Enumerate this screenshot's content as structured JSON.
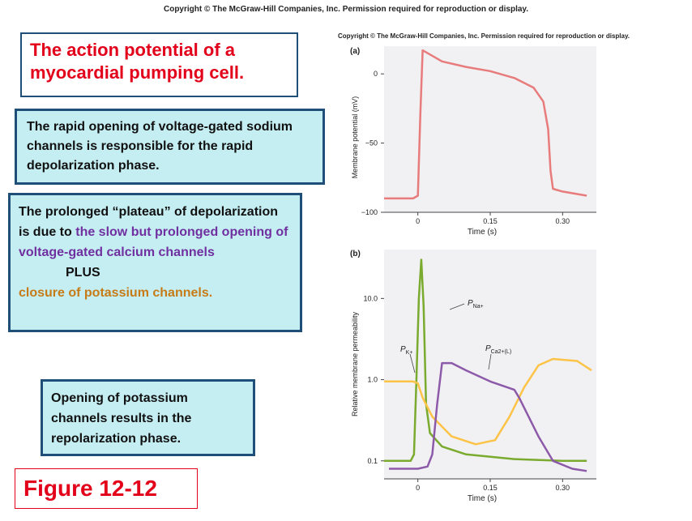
{
  "copyright_top": "Copyright © The McGraw-Hill Companies, Inc. Permission required for reproduction or display.",
  "copyright_figure": "Copyright © The McGraw-Hill Companies, Inc. Permission required for reproduction or display.",
  "title": "The action potential of a myocardial pumping cell.",
  "sodium_text": "The rapid opening of voltage-gated sodium channels is responsible for the rapid depolarization phase.",
  "plateau": {
    "part1": "The prolonged “plateau” of depolarization is due to",
    "part2": "the slow but prolonged opening of voltage-gated calcium channels",
    "plus": "PLUS",
    "part3": "closure of potassium channels."
  },
  "repolarization_text": "Opening of potassium channels results in the repolarization phase.",
  "figure_label": "Figure 12-12",
  "colors": {
    "title_red": "#e2001a",
    "box_fill": "#c5eef3",
    "box_border": "#1f4e79",
    "purple_text": "#7030a0",
    "orange_text": "#c67b16",
    "membrane_curve": "#e87b7b",
    "p_na": "#7aaa2e",
    "p_k": "#fcc347",
    "p_ca": "#8c5aa8",
    "plot_bg": "#f1f1f4"
  },
  "chart_data": [
    {
      "type": "line",
      "panel": "(a)",
      "xlabel": "Time (s)",
      "ylabel": "Membrane potential (mV)",
      "x_ticks": [
        "0",
        "0.15",
        "0.30"
      ],
      "y_ticks": [
        "0",
        "−50",
        "−100"
      ],
      "xlim": [
        -0.07,
        0.37
      ],
      "ylim": [
        -100,
        20
      ],
      "series": [
        {
          "color": "#e87b7b",
          "x": [
            -0.07,
            -0.01,
            0.0,
            0.005,
            0.01,
            0.05,
            0.1,
            0.15,
            0.2,
            0.24,
            0.26,
            0.27,
            0.275,
            0.28,
            0.3,
            0.35
          ],
          "y": [
            -90,
            -90,
            -88,
            -30,
            17,
            9,
            5,
            2,
            -3,
            -10,
            -20,
            -40,
            -70,
            -83,
            -85,
            -88
          ]
        }
      ]
    },
    {
      "type": "line",
      "panel": "(b)",
      "xlabel": "Time (s)",
      "ylabel": "Relative membrane permeability",
      "y_scale": "log",
      "x_ticks": [
        "0",
        "0.15",
        "0.30"
      ],
      "y_ticks": [
        "10.0",
        "1.0",
        "0.1"
      ],
      "xlim": [
        -0.07,
        0.37
      ],
      "ylim": [
        0.06,
        40
      ],
      "series": [
        {
          "name": "PNa+",
          "label_main": "P",
          "label_sub": "Na+",
          "color": "#7aaa2e",
          "x": [
            -0.07,
            -0.015,
            -0.008,
            -0.003,
            0.002,
            0.007,
            0.012,
            0.017,
            0.025,
            0.05,
            0.1,
            0.2,
            0.3,
            0.35
          ],
          "y": [
            0.1,
            0.1,
            0.12,
            1.0,
            10,
            30,
            8,
            0.5,
            0.22,
            0.15,
            0.12,
            0.105,
            0.1,
            0.1
          ]
        },
        {
          "name": "PK+",
          "label_main": "P",
          "label_sub": "K+",
          "color": "#fcc347",
          "x": [
            -0.07,
            -0.01,
            0.0,
            0.01,
            0.03,
            0.07,
            0.12,
            0.16,
            0.19,
            0.22,
            0.25,
            0.28,
            0.33,
            0.36
          ],
          "y": [
            0.95,
            0.95,
            0.9,
            0.6,
            0.35,
            0.2,
            0.16,
            0.18,
            0.35,
            0.8,
            1.5,
            1.8,
            1.7,
            1.3
          ]
        },
        {
          "name": "PCa2+(L)",
          "label_main": "P",
          "label_sub": "Ca2+(L)",
          "color": "#8c5aa8",
          "x": [
            -0.06,
            0.0,
            0.02,
            0.03,
            0.04,
            0.05,
            0.07,
            0.1,
            0.15,
            0.2,
            0.21,
            0.25,
            0.28,
            0.32,
            0.35
          ],
          "y": [
            0.08,
            0.08,
            0.085,
            0.12,
            0.5,
            1.6,
            1.6,
            1.3,
            0.95,
            0.75,
            0.6,
            0.2,
            0.1,
            0.08,
            0.075
          ]
        }
      ]
    }
  ]
}
